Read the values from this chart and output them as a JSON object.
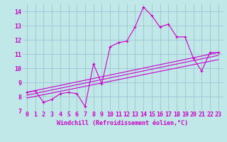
{
  "background_color": "#c0e8e8",
  "grid_color": "#99bbcc",
  "line_color": "#cc00cc",
  "xlabel": "Windchill (Refroidissement éolien,°C)",
  "xlim": [
    -0.5,
    23.5
  ],
  "ylim": [
    7,
    14.5
  ],
  "xticks": [
    0,
    1,
    2,
    3,
    4,
    5,
    6,
    7,
    8,
    9,
    10,
    11,
    12,
    13,
    14,
    15,
    16,
    17,
    18,
    19,
    20,
    21,
    22,
    23
  ],
  "yticks": [
    7,
    8,
    9,
    10,
    11,
    12,
    13,
    14
  ],
  "data_x": [
    0,
    1,
    2,
    3,
    4,
    5,
    6,
    7,
    8,
    9,
    10,
    11,
    12,
    13,
    14,
    15,
    16,
    17,
    18,
    19,
    20,
    21,
    22,
    23
  ],
  "data_y": [
    8.3,
    8.4,
    7.6,
    7.8,
    8.2,
    8.3,
    8.2,
    7.3,
    10.3,
    8.9,
    11.5,
    11.8,
    11.9,
    12.9,
    14.3,
    13.7,
    12.9,
    13.1,
    12.2,
    12.2,
    10.7,
    9.8,
    11.1,
    11.1
  ],
  "trend1_x": [
    0,
    23
  ],
  "trend1_y": [
    8.3,
    11.1
  ],
  "trend2_x": [
    0,
    23
  ],
  "trend2_y": [
    8.1,
    10.9
  ],
  "trend3_x": [
    0,
    23
  ],
  "trend3_y": [
    7.9,
    10.6
  ],
  "font_size": 6,
  "tick_font_size": 6
}
